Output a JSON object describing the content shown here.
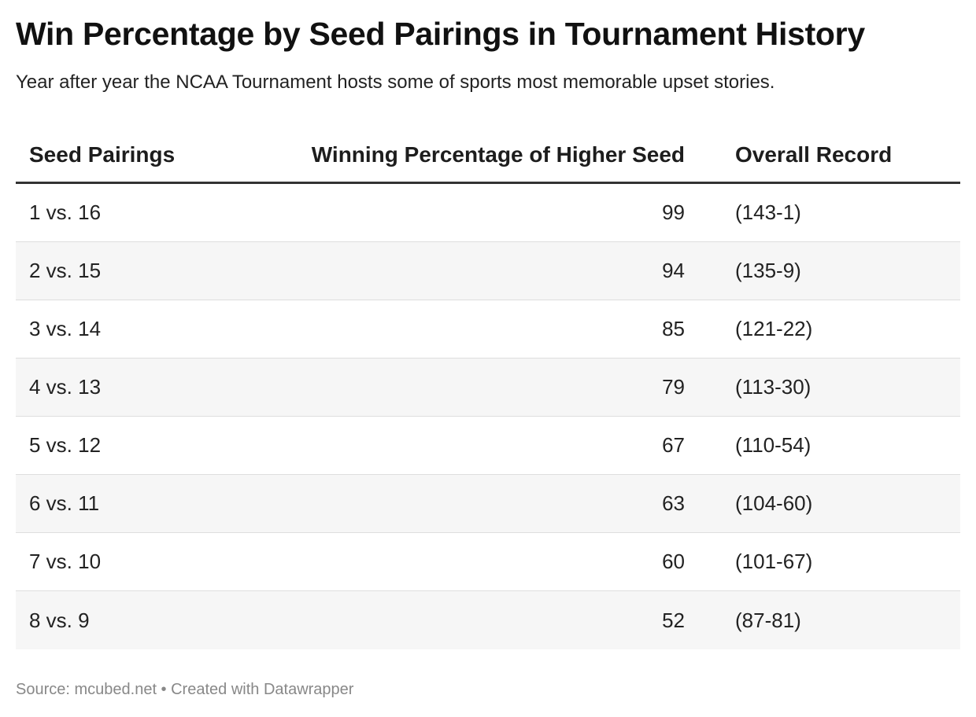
{
  "header": {
    "title": "Win Percentage by Seed Pairings in Tournament History",
    "subtitle": "Year after year the NCAA Tournament hosts some of sports most memorable upset stories."
  },
  "footer": {
    "source_text": "Source: mcubed.net • Created with Datawrapper"
  },
  "chart_data": {
    "type": "table",
    "columns": [
      "Seed Pairings",
      "Winning Percentage of Higher Seed",
      "Overall Record"
    ],
    "rows": [
      [
        "1 vs. 16",
        "99",
        "(143-1)"
      ],
      [
        "2 vs. 15",
        "94",
        "(135-9)"
      ],
      [
        "3 vs. 14",
        "85",
        "(121-22)"
      ],
      [
        "4 vs. 13",
        "79",
        "(113-30)"
      ],
      [
        "5 vs. 12",
        "67",
        "(110-54)"
      ],
      [
        "6 vs. 11",
        "63",
        "(104-60)"
      ],
      [
        "7 vs. 10",
        "60",
        "(101-67)"
      ],
      [
        "8 vs. 9",
        "52",
        "(87-81)"
      ]
    ]
  },
  "colors": {
    "header_rule": "#333333",
    "row_stripe": "#f6f6f6",
    "row_divider": "#dedede",
    "footer_text": "#888888"
  }
}
